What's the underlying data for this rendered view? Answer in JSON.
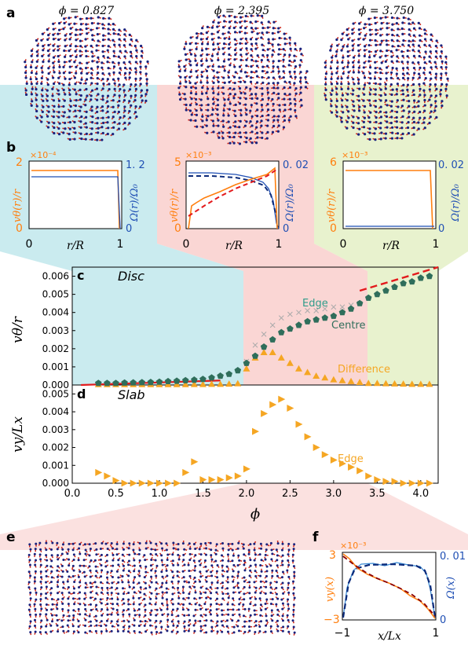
{
  "colors": {
    "blue_region": "#b8e4ea",
    "pink_region": "#f8c8c6",
    "green_region": "#e4f0c6",
    "orange": "#ff7f0e",
    "blue": "#1f4fb4",
    "red": "#e31a1c",
    "teal": "#2e7d6b",
    "centre_green": "#2f6e5b",
    "gold": "#f5a623",
    "gray": "#aaaaaa",
    "particle_red": "#d0281b",
    "particle_blue": "#1a237e"
  },
  "panel_labels": {
    "a": "a",
    "b": "b",
    "c": "c",
    "d": "d",
    "e": "e",
    "f": "f"
  },
  "panel_a": {
    "titles": [
      "ϕ = 0.827",
      "ϕ = 2.395",
      "ϕ = 3.750"
    ]
  },
  "panel_b": {
    "xlabel": "r/R",
    "x_ticks": [
      "0",
      "1"
    ],
    "left_ylabel": "vθ(r)/r",
    "right_ylabel": "Ω(r)/Ω₀",
    "subplots": [
      {
        "left_top": "2",
        "left_exp": "×10⁻⁴",
        "left_bottom": "0",
        "right_top": "1. 2",
        "right_bottom": "0"
      },
      {
        "left_top": "5",
        "left_exp": "×10⁻³",
        "left_bottom": "0",
        "right_top": "0. 02",
        "right_bottom": "0"
      },
      {
        "left_top": "6",
        "left_exp": "×10⁻³",
        "left_bottom": "0",
        "right_top": "0. 02",
        "right_bottom": "0"
      }
    ]
  },
  "panel_c": {
    "title": "Disc",
    "ylabel": "vθ/r",
    "y_ticks": [
      "0.000",
      "0.001",
      "0.002",
      "0.003",
      "0.004",
      "0.005",
      "0.006"
    ],
    "legend": {
      "edge": "Edge",
      "centre": "Centre",
      "difference": "Difference"
    }
  },
  "panel_d": {
    "title": "Slab",
    "ylabel": "vy/Lx",
    "y_ticks": [
      "0.000",
      "0.001",
      "0.002",
      "0.003",
      "0.004",
      "0.005"
    ],
    "legend": {
      "edge": "Edge"
    },
    "xlabel": "ϕ",
    "x_ticks": [
      "0.0",
      "0.5",
      "1.0",
      "1.5",
      "2.0",
      "2.5",
      "3.0",
      "3.5",
      "4.0"
    ]
  },
  "panel_f": {
    "exp": "×10⁻³",
    "left_top": "3",
    "left_bottom": "−3",
    "right_top": "0. 01",
    "right_bottom": "0",
    "left_ylabel": "vy(x)",
    "right_ylabel": "Ω(x)",
    "xlabel": "x/Lx",
    "x_ticks": [
      "−1",
      "1"
    ]
  },
  "chart_data": [
    {
      "type": "scatter",
      "title": "Disc",
      "ylabel": "vθ/r",
      "xlim": [
        0,
        4.2
      ],
      "ylim": [
        0,
        0.0065
      ],
      "regions": [
        {
          "from": 0,
          "to": 1.95,
          "color": "blue"
        },
        {
          "from": 1.95,
          "to": 3.33,
          "color": "pink"
        },
        {
          "from": 3.33,
          "to": 4.2,
          "color": "green"
        }
      ],
      "series": [
        {
          "name": "Centre",
          "x": [
            0.3,
            0.4,
            0.5,
            0.6,
            0.7,
            0.8,
            0.9,
            1.0,
            1.1,
            1.2,
            1.3,
            1.4,
            1.5,
            1.6,
            1.7,
            1.8,
            1.9,
            2.0,
            2.1,
            2.2,
            2.3,
            2.4,
            2.5,
            2.6,
            2.7,
            2.8,
            2.9,
            3.0,
            3.1,
            3.2,
            3.3,
            3.4,
            3.5,
            3.6,
            3.7,
            3.8,
            3.9,
            4.0,
            4.1
          ],
          "y": [
            0.0001,
            0.0001,
            0.0001,
            0.00012,
            0.00013,
            0.00014,
            0.00015,
            0.00017,
            0.0002,
            0.00022,
            0.00025,
            0.00028,
            0.00032,
            0.0004,
            0.0005,
            0.0006,
            0.0008,
            0.0012,
            0.0016,
            0.0021,
            0.0025,
            0.0029,
            0.0031,
            0.0033,
            0.0035,
            0.0036,
            0.0037,
            0.0038,
            0.004,
            0.0042,
            0.0045,
            0.0048,
            0.005,
            0.0052,
            0.0054,
            0.0056,
            0.0057,
            0.0059,
            0.006
          ]
        },
        {
          "name": "Edge",
          "x": [
            2.0,
            2.1,
            2.2,
            2.3,
            2.4,
            2.5,
            2.6,
            2.7,
            2.8,
            2.9,
            3.0,
            3.1,
            3.2,
            3.3
          ],
          "y": [
            0.0013,
            0.0022,
            0.0028,
            0.0033,
            0.0037,
            0.0039,
            0.004,
            0.0041,
            0.0041,
            0.0042,
            0.0043,
            0.0043,
            0.0044,
            0.0045
          ]
        },
        {
          "name": "Difference",
          "x": [
            0.3,
            0.4,
            0.5,
            0.6,
            0.7,
            0.8,
            0.9,
            1.0,
            1.1,
            1.2,
            1.3,
            1.4,
            1.5,
            1.6,
            1.7,
            1.8,
            1.9,
            2.0,
            2.1,
            2.2,
            2.3,
            2.4,
            2.5,
            2.6,
            2.7,
            2.8,
            2.9,
            3.0,
            3.1,
            3.2,
            3.3,
            3.4,
            3.5,
            3.6,
            3.7,
            3.8,
            3.9,
            4.0,
            4.1
          ],
          "y": [
            3e-05,
            3e-05,
            3e-05,
            3e-05,
            3e-05,
            3e-05,
            3e-05,
            3e-05,
            3e-05,
            3e-05,
            3e-05,
            4e-05,
            4e-05,
            5e-05,
            5e-05,
            6e-05,
            8e-05,
            0.0009,
            0.0015,
            0.0018,
            0.0018,
            0.0015,
            0.0012,
            0.0009,
            0.0007,
            0.0005,
            0.0004,
            0.0003,
            0.00025,
            0.0002,
            0.00015,
            0.0001,
            0.0001,
            8e-05,
            7e-05,
            6e-05,
            5e-05,
            5e-05,
            5e-05
          ]
        }
      ],
      "fit_lines": [
        {
          "x": [
            0.1,
            1.7
          ],
          "y": [
            0.0,
            0.00025
          ]
        },
        {
          "x": [
            3.3,
            4.2
          ],
          "y": [
            0.0052,
            0.0065
          ]
        }
      ]
    },
    {
      "type": "scatter",
      "title": "Slab",
      "xlabel": "ϕ",
      "ylabel": "vy/Lx",
      "xlim": [
        0,
        4.2
      ],
      "ylim": [
        0,
        0.0055
      ],
      "series": [
        {
          "name": "Edge",
          "x": [
            0.3,
            0.4,
            0.5,
            0.6,
            0.7,
            0.8,
            0.9,
            1.0,
            1.1,
            1.2,
            1.3,
            1.4,
            1.5,
            1.6,
            1.7,
            1.8,
            1.9,
            2.0,
            2.1,
            2.2,
            2.3,
            2.4,
            2.5,
            2.6,
            2.7,
            2.8,
            2.9,
            3.0,
            3.1,
            3.2,
            3.3,
            3.4,
            3.5,
            3.6,
            3.7,
            3.8,
            3.9,
            4.0,
            4.1
          ],
          "y": [
            0.0006,
            0.0004,
            0.00015,
            0.0,
            0.0,
            0.0,
            0.0,
            0.0,
            0.0,
            0.0,
            0.0006,
            0.0012,
            0.0002,
            0.0002,
            0.0002,
            0.0003,
            0.0004,
            0.0008,
            0.0029,
            0.0039,
            0.0044,
            0.0047,
            0.0042,
            0.0033,
            0.0026,
            0.002,
            0.0016,
            0.0013,
            0.0011,
            0.0009,
            0.0007,
            0.0004,
            0.0002,
            0.0001,
            0.0001,
            0.0,
            0.0,
            0.0,
            0.0
          ]
        }
      ]
    }
  ]
}
